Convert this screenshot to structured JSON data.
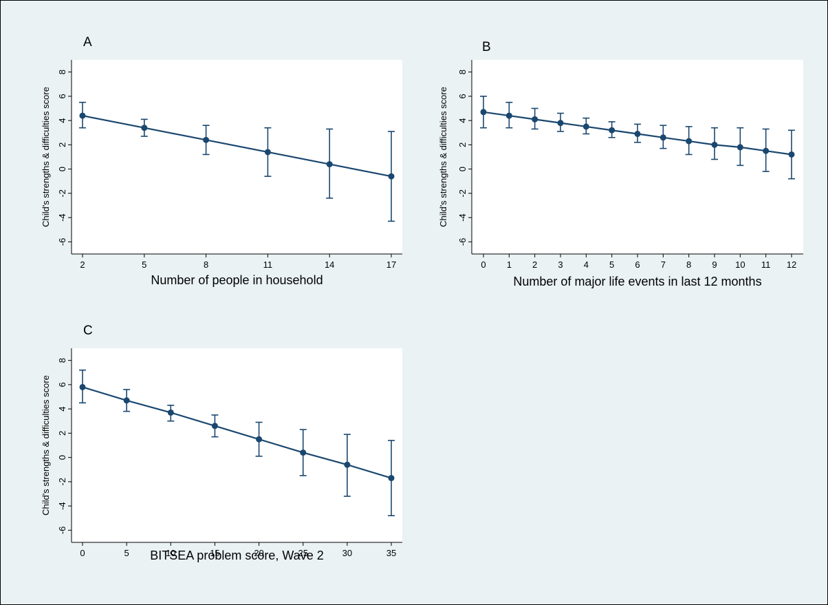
{
  "chart_data": [
    {
      "type": "line",
      "panel_label": "A",
      "xlabel": "Number of people in household",
      "ylabel": "Child's strengths & difficulties score",
      "x_ticks": [
        2,
        5,
        8,
        11,
        14,
        17
      ],
      "y_ticks": [
        -6,
        -4,
        -2,
        0,
        2,
        4,
        6,
        8
      ],
      "xlim": [
        2,
        17
      ],
      "ylim": [
        -7,
        9
      ],
      "grid": false,
      "color": "#1a476f",
      "series": [
        {
          "x": [
            2,
            5,
            8,
            11,
            14,
            17
          ],
          "y": [
            4.4,
            3.4,
            2.4,
            1.4,
            0.4,
            -0.6
          ],
          "ci_low": [
            3.4,
            2.7,
            1.2,
            -0.6,
            -2.4,
            -4.3
          ],
          "ci_high": [
            5.5,
            4.1,
            3.6,
            3.4,
            3.3,
            3.1
          ]
        }
      ]
    },
    {
      "type": "line",
      "panel_label": "B",
      "xlabel": "Number of major life events in last 12 months",
      "ylabel": "Child's strengths & difficulties score",
      "x_ticks": [
        0,
        1,
        2,
        3,
        4,
        5,
        6,
        7,
        8,
        9,
        10,
        11,
        12
      ],
      "y_ticks": [
        -6,
        -4,
        -2,
        0,
        2,
        4,
        6,
        8
      ],
      "xlim": [
        0,
        12
      ],
      "ylim": [
        -7,
        9
      ],
      "grid": false,
      "color": "#1a476f",
      "series": [
        {
          "x": [
            0,
            1,
            2,
            3,
            4,
            5,
            6,
            7,
            8,
            9,
            10,
            11,
            12
          ],
          "y": [
            4.7,
            4.4,
            4.1,
            3.8,
            3.5,
            3.2,
            2.9,
            2.6,
            2.3,
            2.0,
            1.8,
            1.5,
            1.2
          ],
          "ci_low": [
            3.4,
            3.4,
            3.3,
            3.1,
            2.9,
            2.6,
            2.2,
            1.7,
            1.2,
            0.8,
            0.3,
            -0.2,
            -0.8
          ],
          "ci_high": [
            6.0,
            5.5,
            5.0,
            4.6,
            4.2,
            3.9,
            3.7,
            3.6,
            3.5,
            3.4,
            3.4,
            3.3,
            3.2
          ]
        }
      ]
    },
    {
      "type": "line",
      "panel_label": "C",
      "xlabel": "BITSEA problem score, Wave 2",
      "ylabel": "Child's strengths & difficulties score",
      "x_ticks": [
        0,
        5,
        10,
        15,
        20,
        25,
        30,
        35
      ],
      "y_ticks": [
        -6,
        -4,
        -2,
        0,
        2,
        4,
        6,
        8
      ],
      "xlim": [
        0,
        35
      ],
      "ylim": [
        -7,
        9
      ],
      "grid": false,
      "color": "#1a476f",
      "series": [
        {
          "x": [
            0,
            5,
            10,
            15,
            20,
            25,
            30,
            35
          ],
          "y": [
            5.8,
            4.7,
            3.7,
            2.6,
            1.5,
            0.4,
            -0.6,
            -1.7
          ],
          "ci_low": [
            4.5,
            3.8,
            3.0,
            1.7,
            0.1,
            -1.5,
            -3.2,
            -4.8
          ],
          "ci_high": [
            7.2,
            5.6,
            4.3,
            3.5,
            2.9,
            2.3,
            1.9,
            1.4
          ]
        }
      ]
    }
  ]
}
